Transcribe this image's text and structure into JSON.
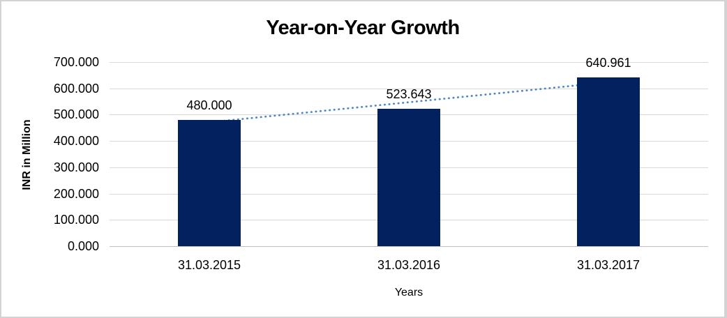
{
  "chart_data": {
    "type": "bar",
    "title": "Year-on-Year Growth",
    "xlabel": "Years",
    "ylabel": "INR in Million",
    "categories": [
      "31.03.2015",
      "31.03.2016",
      "31.03.2017"
    ],
    "values": [
      480.0,
      523.643,
      640.961
    ],
    "value_labels": [
      "480.000",
      "523.643",
      "640.961"
    ],
    "ylim": [
      0,
      700
    ],
    "yticks": [
      {
        "value": 0,
        "label": "0.000"
      },
      {
        "value": 100,
        "label": "100.000"
      },
      {
        "value": 200,
        "label": "200.000"
      },
      {
        "value": 300,
        "label": "300.000"
      },
      {
        "value": 400,
        "label": "400.000"
      },
      {
        "value": 500,
        "label": "500.000"
      },
      {
        "value": 600,
        "label": "600.000"
      },
      {
        "value": 700,
        "label": "700.000"
      }
    ],
    "grid": true,
    "legend": false,
    "colors": {
      "bar": "#02215E",
      "gridline": "#D9D9D9",
      "axis_line": "#BFBFBF",
      "trendline": "#4E87C8",
      "text": "#000000"
    },
    "trendline": {
      "type": "linear",
      "style": "dotted",
      "start_value": 469,
      "end_value": 626
    }
  }
}
